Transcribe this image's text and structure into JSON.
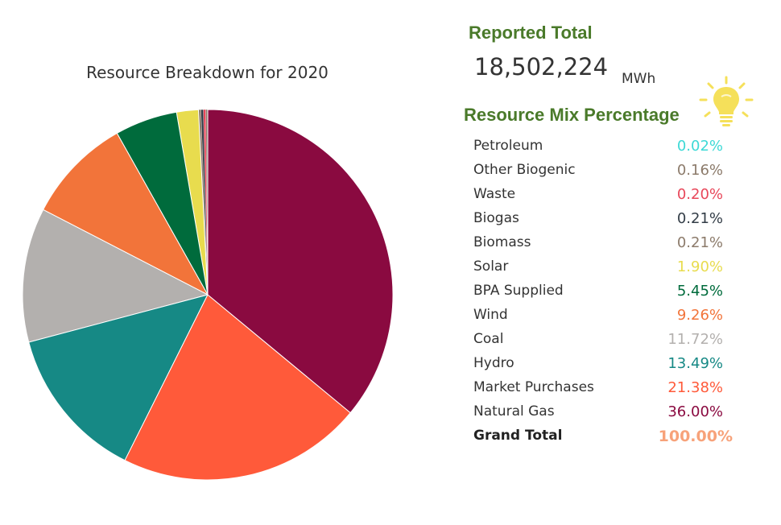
{
  "reported_total": {
    "heading": "Reported Total",
    "value": "18,502,224",
    "unit": "MWh"
  },
  "mix": {
    "heading": "Resource Mix Percentage",
    "icon": "lightbulb-icon",
    "icon_color": "#f5e05a"
  },
  "chart_data": {
    "type": "pie",
    "title": "Resource Breakdown for 2020",
    "start": "top",
    "direction": "counterclockwise",
    "slices": [
      {
        "label": "Petroleum",
        "value": 0.02,
        "display": "0.02%",
        "color": "#3dd9d6"
      },
      {
        "label": "Other Biogenic",
        "value": 0.16,
        "display": "0.16%",
        "color": "#8c7b6b"
      },
      {
        "label": "Waste",
        "value": 0.2,
        "display": "0.20%",
        "color": "#e8475a"
      },
      {
        "label": "Biogas",
        "value": 0.21,
        "display": "0.21%",
        "color": "#333d47"
      },
      {
        "label": "Biomass",
        "value": 0.21,
        "display": "0.21%",
        "color": "#8c7b6b"
      },
      {
        "label": "Solar",
        "value": 1.9,
        "display": "1.90%",
        "color": "#e8dc4e"
      },
      {
        "label": "BPA Supplied",
        "value": 5.45,
        "display": "5.45%",
        "color": "#006b3c"
      },
      {
        "label": "Wind",
        "value": 9.26,
        "display": "9.26%",
        "color": "#f2743a"
      },
      {
        "label": "Coal",
        "value": 11.72,
        "display": "11.72%",
        "color": "#b3b0ae"
      },
      {
        "label": "Hydro",
        "value": 13.49,
        "display": "13.49%",
        "color": "#168985"
      },
      {
        "label": "Market Purchases",
        "value": 21.38,
        "display": "21.38%",
        "color": "#ff5a3a"
      },
      {
        "label": "Natural Gas",
        "value": 36.0,
        "display": "36.00%",
        "color": "#8a0a40"
      }
    ],
    "grand_total": {
      "label": "Grand Total",
      "display": "100.00%",
      "color": "#f7a27a"
    }
  }
}
